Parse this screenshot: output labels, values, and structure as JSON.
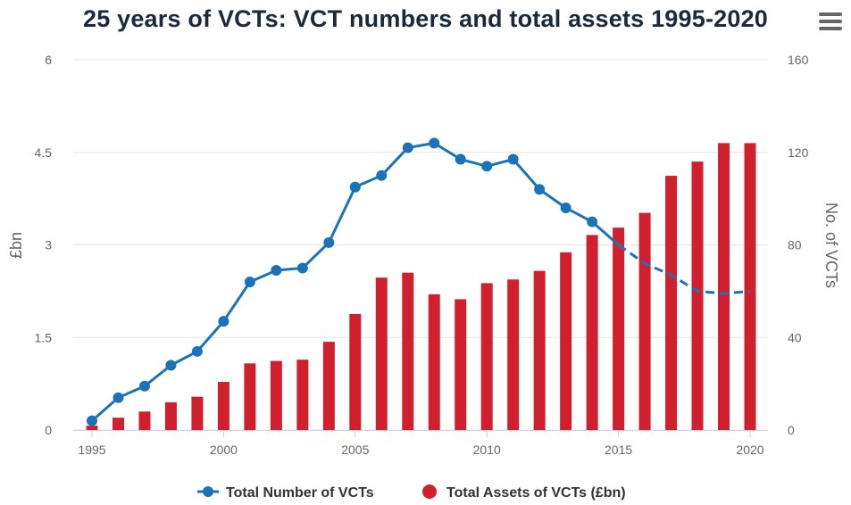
{
  "title": "25 years of VCTs: VCT numbers and total assets 1995-2020",
  "menu_icon": "hamburger-menu-icon",
  "colors": {
    "line": "#1a73b8",
    "bars": "#d0202e",
    "grid": "#e6e6e6",
    "text": "#666666"
  },
  "chart_data": {
    "type": "bar",
    "x": [
      1995,
      1996,
      1997,
      1998,
      1999,
      2000,
      2001,
      2002,
      2003,
      2004,
      2005,
      2006,
      2007,
      2008,
      2009,
      2010,
      2011,
      2012,
      2013,
      2014,
      2015,
      2016,
      2017,
      2018,
      2019,
      2020
    ],
    "x_ticks": [
      "1995",
      "2000",
      "2005",
      "2010",
      "2015",
      "2020"
    ],
    "series": [
      {
        "name": "Total Number of VCTs",
        "type": "line",
        "axis": "right",
        "values": [
          4,
          14,
          19,
          28,
          34,
          47,
          64,
          69,
          70,
          81,
          105,
          110,
          122,
          124,
          117,
          114,
          117,
          104,
          96,
          90,
          80,
          72,
          67,
          60,
          59,
          60
        ],
        "dashed_from": 2015,
        "markers_until": 2014
      },
      {
        "name": "Total Assets of VCTs (£bn)",
        "type": "bar",
        "axis": "left",
        "values": [
          0.07,
          0.2,
          0.3,
          0.45,
          0.54,
          0.78,
          1.08,
          1.12,
          1.14,
          1.43,
          1.88,
          2.47,
          2.55,
          2.2,
          2.12,
          2.38,
          2.44,
          2.58,
          2.88,
          3.16,
          3.28,
          3.52,
          4.12,
          4.35,
          4.65,
          4.65
        ]
      }
    ],
    "y_left": {
      "label": "£bn",
      "ticks": [
        "0",
        "1.5",
        "3",
        "4.5",
        "6"
      ],
      "range": [
        0,
        6
      ]
    },
    "y_right": {
      "label": "No. of VCTs",
      "ticks": [
        "0",
        "40",
        "80",
        "120",
        "160"
      ],
      "range": [
        0,
        160
      ]
    },
    "grid": true,
    "legend_position": "bottom-center"
  }
}
